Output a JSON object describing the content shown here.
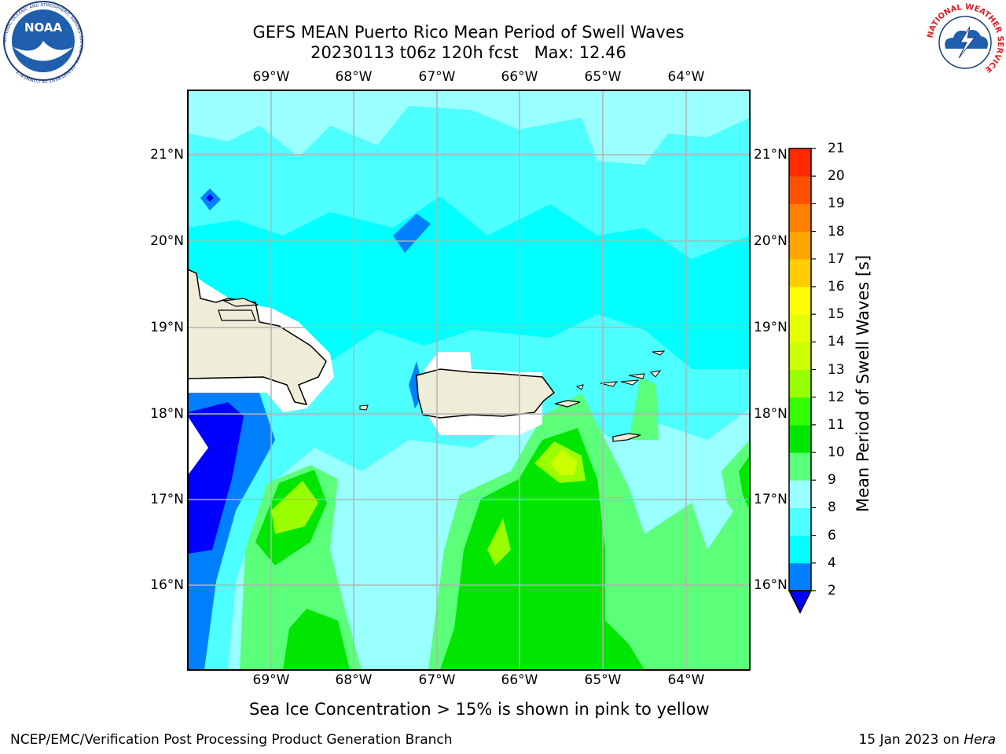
{
  "title": {
    "line1": "GEFS MEAN Puerto Rico Mean Period of Swell Waves",
    "line2": "20230113 t06z 120h fcst   Max: 12.46"
  },
  "map": {
    "lon_ticks": [
      "69°W",
      "68°W",
      "67°W",
      "66°W",
      "65°W",
      "64°W"
    ],
    "lat_ticks": [
      "21°N",
      "20°N",
      "19°N",
      "18°N",
      "17°N",
      "16°N"
    ],
    "colors": {
      "ocean_light": "#99ffff",
      "ocean_mid": "#4dffff",
      "ocean_cyan": "#00ffff",
      "green_light": "#5cff7a",
      "green": "#00e600",
      "yellow": "#ccff00",
      "blue": "#0080ff",
      "dark_blue": "#0000ff",
      "land": "#efedd8",
      "grid": "#b3b3b3"
    }
  },
  "colorbar": {
    "label": "Mean Period of Swell Waves [s]",
    "ticks": [
      "2",
      "4",
      "6",
      "8",
      "9",
      "10",
      "11",
      "12",
      "13",
      "14",
      "15",
      "16",
      "17",
      "18",
      "19",
      "20",
      "21"
    ],
    "colors": [
      "#0080ff",
      "#00ffff",
      "#4dffff",
      "#99ffff",
      "#5cff7a",
      "#00e600",
      "#33ff00",
      "#99ff00",
      "#ccff00",
      "#e6ff00",
      "#ffff00",
      "#ffcc00",
      "#ffa500",
      "#ff7f00",
      "#ff5000",
      "#ff2a00"
    ],
    "extend_color": "#0000ff"
  },
  "note": "Sea Ice Concentration > 15% is shown in pink to yellow",
  "footer": {
    "left": "NCEP/EMC/Verification Post Processing Product Generation Branch",
    "right_date": "15 Jan 2023 on ",
    "right_machine": "Hera"
  },
  "logos": {
    "noaa_text": "NOAA",
    "noaa_ring": "NATIONAL OCEANIC AND ATMOSPHERIC ADMINISTRATION · U.S. DEPARTMENT OF COMMERCE",
    "nws_ring": "NATIONAL WEATHER SERVICE"
  }
}
